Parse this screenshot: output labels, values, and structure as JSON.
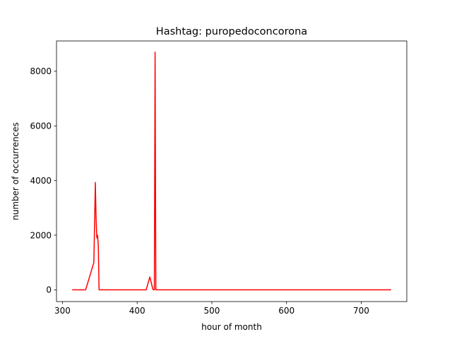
{
  "chart_data": {
    "type": "line",
    "title": "Hashtag: puropedoconcorona",
    "xlabel": "hour of month",
    "ylabel": "number of occurrences",
    "xlim": [
      292,
      761
    ],
    "ylim": [
      -430,
      9110
    ],
    "xticks": [
      300,
      400,
      500,
      600,
      700
    ],
    "yticks": [
      0,
      2000,
      4000,
      6000,
      8000
    ],
    "grid": false,
    "series": [
      {
        "color": "#ff0000",
        "x": [
          313,
          331,
          342,
          344,
          345,
          346,
          347,
          348,
          349,
          350,
          360,
          380,
          400,
          412,
          417,
          421,
          422,
          423,
          424,
          425,
          426,
          430,
          450,
          500,
          600,
          700,
          740
        ],
        "y": [
          0,
          0,
          1000,
          3930,
          2600,
          1900,
          2000,
          1600,
          0,
          0,
          0,
          0,
          0,
          0,
          470,
          20,
          0,
          0,
          8700,
          0,
          0,
          0,
          0,
          0,
          0,
          0,
          0
        ]
      }
    ]
  }
}
